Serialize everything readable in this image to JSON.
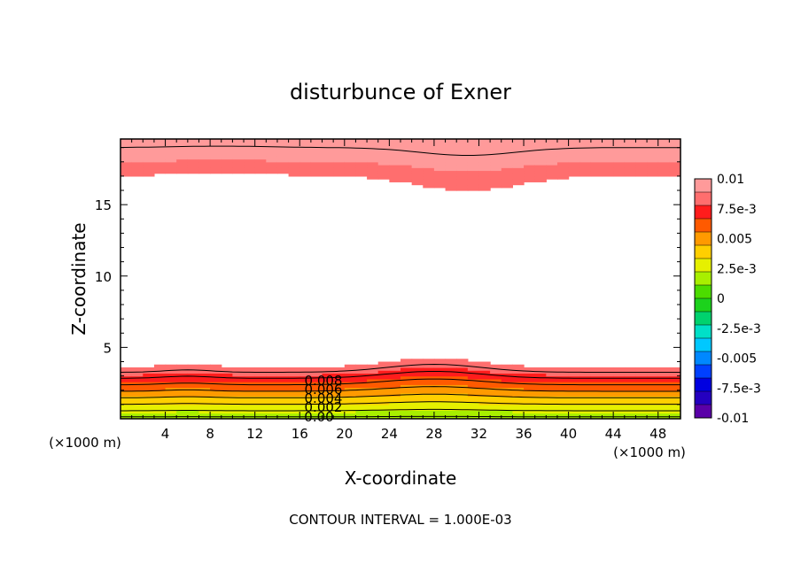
{
  "chart_data": {
    "type": "heatmap",
    "title": "disturbunce of Exner",
    "xlabel": "X-coordinate",
    "ylabel": "Z-coordinate",
    "x_unit": "(×1000 m)",
    "z_unit": "(×1000 m)",
    "footer": "CONTOUR INTERVAL = 1.000E-03",
    "xlim": [
      0,
      50
    ],
    "zlim": [
      0,
      19.6
    ],
    "x_ticks": [
      4,
      8,
      12,
      16,
      20,
      24,
      28,
      32,
      36,
      40,
      44,
      48
    ],
    "z_ticks": [
      5,
      10,
      15
    ],
    "contour_interval": 0.001,
    "contour_labels": [
      "0.008",
      "0.006",
      "0.004",
      "0.002",
      "0.00"
    ],
    "colorbar": {
      "min": -0.01,
      "max": 0.01,
      "labels": [
        "0.01",
        "7.5e-3",
        "0.005",
        "2.5e-3",
        "0",
        "-2.5e-3",
        "-0.005",
        "-7.5e-3",
        "-0.01"
      ],
      "colors": [
        "#ff9a9a",
        "#ff6e6e",
        "#ff1c1c",
        "#ff5a00",
        "#ff9a00",
        "#ffcf00",
        "#e6f000",
        "#a8ef00",
        "#4cdc00",
        "#1cd21c",
        "#00d26e",
        "#00e0c8",
        "#00c8ff",
        "#0088ff",
        "#0040ff",
        "#0000e0",
        "#2400c0",
        "#5a00a8"
      ]
    }
  }
}
